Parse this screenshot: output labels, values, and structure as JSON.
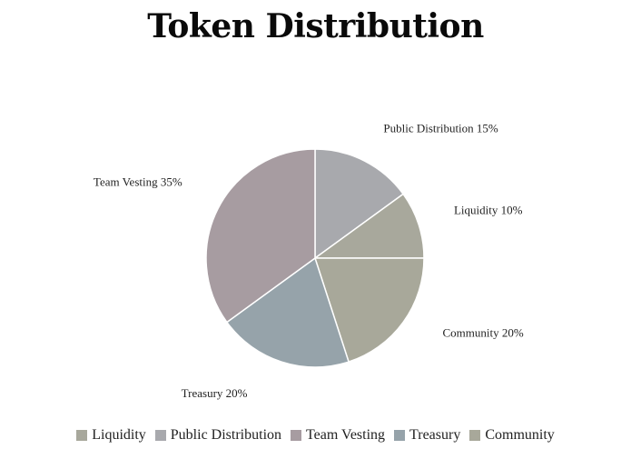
{
  "chart_data": {
    "type": "pie",
    "title": "Token Distribution",
    "slices": [
      {
        "label": "Public Distribution",
        "value": 15,
        "data_label": "Public Distribution 15%",
        "color": "#a8a9ad"
      },
      {
        "label": "Liquidity",
        "value": 10,
        "data_label": "Liquidity 10%",
        "color": "#a8a89c"
      },
      {
        "label": "Community",
        "value": 20,
        "data_label": "Community 20%",
        "color": "#a8a89a"
      },
      {
        "label": "Treasury",
        "value": 20,
        "data_label": "Treasury 20%",
        "color": "#96a3aa"
      },
      {
        "label": "Team Vesting",
        "value": 35,
        "data_label": "Team Vesting 35%",
        "color": "#a79ca1"
      }
    ],
    "legend": {
      "placement": "bottom",
      "entries": [
        {
          "label": "Liquidity",
          "color": "#a8a89c"
        },
        {
          "label": "Public Distribution",
          "color": "#a8a9ad"
        },
        {
          "label": "Team Vesting",
          "color": "#a79ca1"
        },
        {
          "label": "Treasury",
          "color": "#96a3aa"
        },
        {
          "label": "Community",
          "color": "#a8a89a"
        }
      ]
    }
  }
}
